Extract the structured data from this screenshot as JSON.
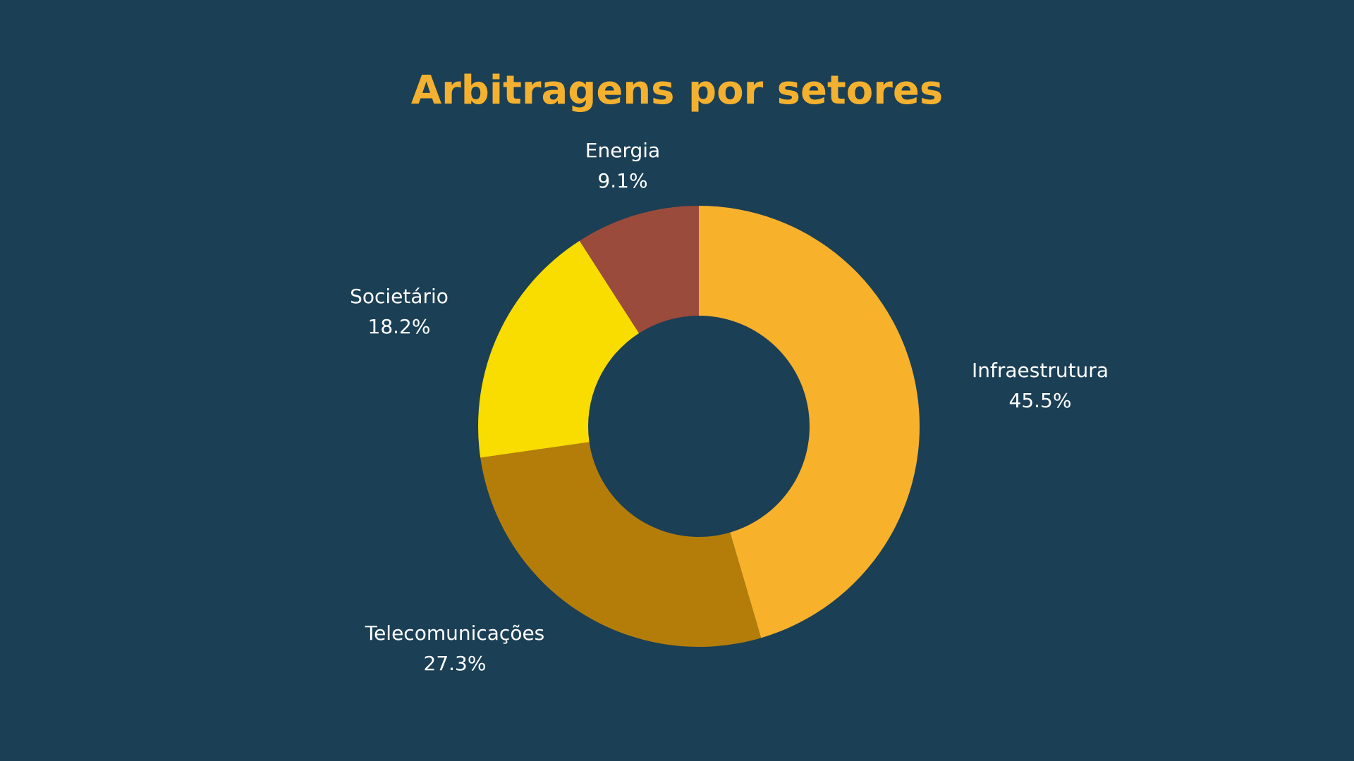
{
  "chart_data": {
    "type": "donut",
    "title": "Arbitragens por setores",
    "categories": [
      "Infraestrutura",
      "Telecomunicações",
      "Societário",
      "Energia"
    ],
    "values": [
      45.5,
      27.3,
      18.2,
      9.1
    ],
    "value_labels": [
      "45.5%",
      "27.3%",
      "18.2%",
      "9.1%"
    ],
    "colors": [
      "#f7b12b",
      "#b47d0a",
      "#f9dc00",
      "#9b4b3b"
    ]
  }
}
